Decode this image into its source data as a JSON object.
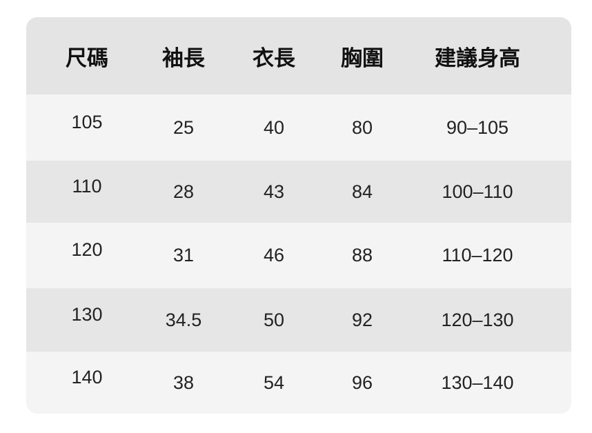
{
  "table": {
    "headers": [
      "尺碼",
      "袖長",
      "衣長",
      "胸圍",
      "建議身高"
    ],
    "rows": [
      [
        "105",
        "25",
        "40",
        "80",
        "90–105"
      ],
      [
        "110",
        "28",
        "43",
        "84",
        "100–110"
      ],
      [
        "120",
        "31",
        "46",
        "88",
        "110–120"
      ],
      [
        "130",
        "34.5",
        "50",
        "92",
        "120–130"
      ],
      [
        "140",
        "38",
        "54",
        "96",
        "130–140"
      ]
    ]
  },
  "colors": {
    "header_bg": "#e4e4e4",
    "row_light": "#f4f4f4",
    "row_dark": "#e6e6e6"
  }
}
